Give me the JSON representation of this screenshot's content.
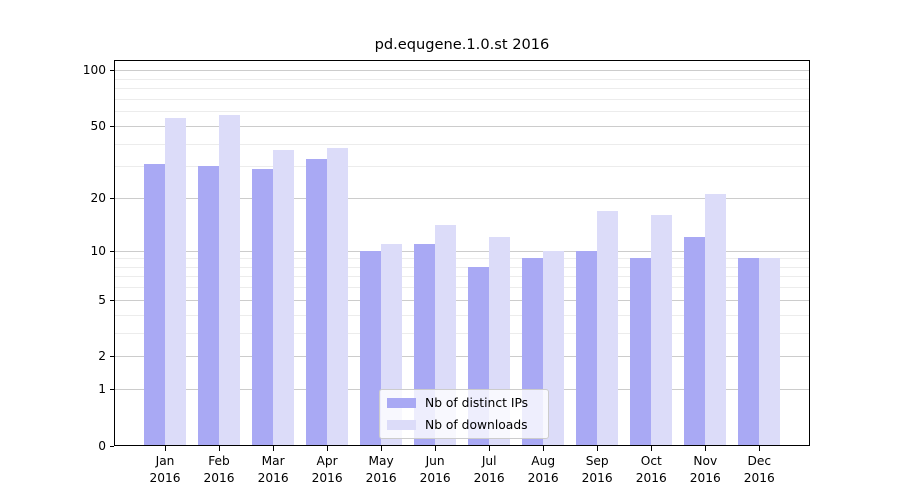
{
  "title": "pd.equgene.1.0.st 2016",
  "chart_data": {
    "type": "bar",
    "title": "pd.equgene.1.0.st 2016",
    "y_scale": "log10(1+y)",
    "grid": true,
    "categories": [
      "Jan 2016",
      "Feb 2016",
      "Mar 2016",
      "Apr 2016",
      "May 2016",
      "Jun 2016",
      "Jul 2016",
      "Aug 2016",
      "Sep 2016",
      "Oct 2016",
      "Nov 2016",
      "Dec 2016"
    ],
    "series": [
      {
        "name": "Nb of distinct IPs",
        "color": "#a9a9f4",
        "values": [
          31,
          30,
          29,
          33,
          10,
          11,
          8,
          9,
          10,
          9,
          12,
          9
        ]
      },
      {
        "name": "Nb of downloads",
        "color": "#dcdcf9",
        "values": [
          55,
          57,
          37,
          38,
          11,
          14,
          12,
          10,
          17,
          16,
          21,
          9
        ]
      }
    ],
    "y_ticks": [
      100,
      50,
      20,
      10,
      5,
      2,
      1,
      0
    ],
    "y_minor_gridlines": [
      90,
      80,
      70,
      60,
      40,
      30,
      9,
      8,
      7,
      6,
      4,
      3
    ],
    "ylim": [
      0,
      113
    ],
    "legend": {
      "position": "lower center"
    }
  },
  "colors": {
    "bar_distinct_ips": "#a9a9f4",
    "bar_downloads": "#dcdcf9",
    "grid_major": "#cccccc",
    "grid_minor": "#ececec",
    "spine": "#000000",
    "background": "#ffffff"
  }
}
